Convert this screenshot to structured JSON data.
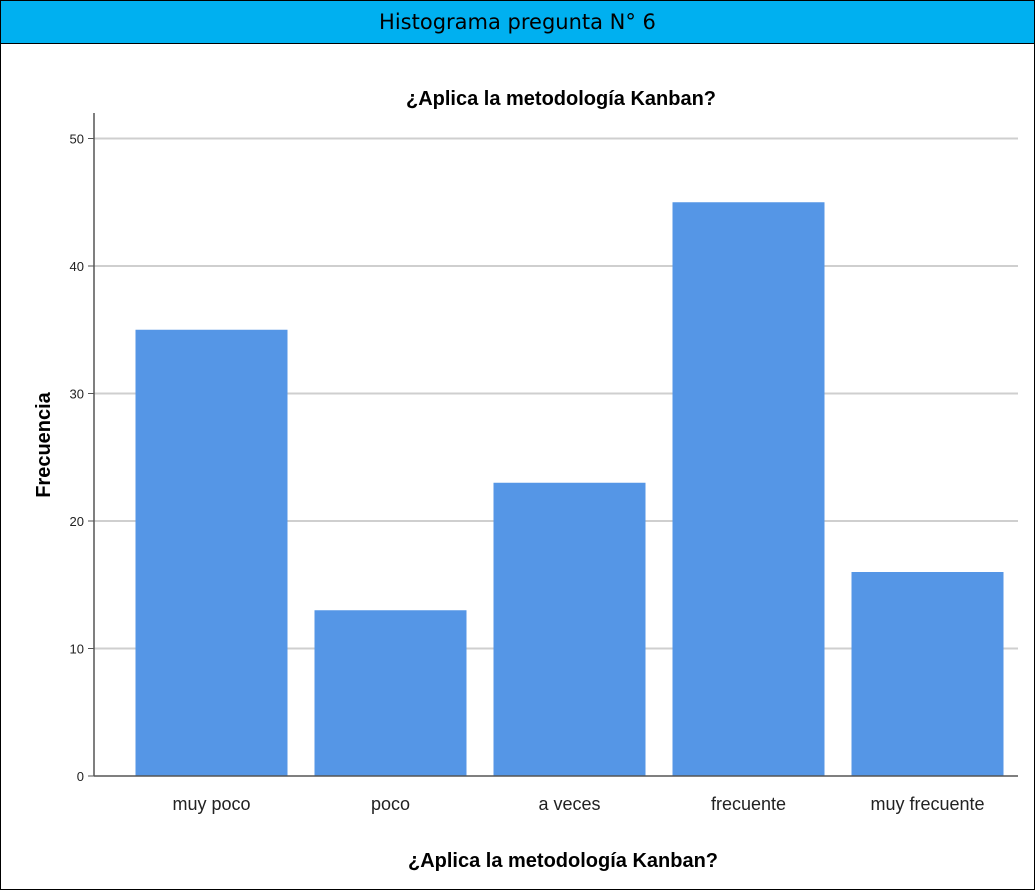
{
  "header": {
    "title": "Histograma pregunta N° 6"
  },
  "colors": {
    "header_bg": "#00b0f0",
    "bar": "#5596e6",
    "grid": "#cfcfcf",
    "axis": "#555555"
  },
  "chart_data": {
    "type": "bar",
    "title": "¿Aplica la metodología Kanban?",
    "xlabel": "¿Aplica la metodología Kanban?",
    "ylabel": "Frecuencia",
    "categories": [
      "muy poco",
      "poco",
      "a veces",
      "frecuente",
      "muy frecuente"
    ],
    "values": [
      35,
      13,
      23,
      45,
      16
    ],
    "ylim": [
      0,
      52
    ],
    "yticks": [
      0,
      10,
      20,
      30,
      40,
      50
    ],
    "grid": true
  }
}
